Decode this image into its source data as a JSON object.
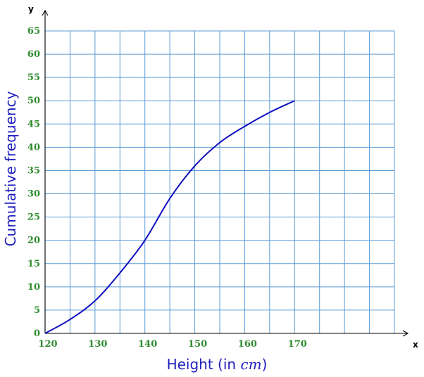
{
  "chart_data": {
    "type": "line",
    "title": "",
    "xlabel": "Height (in cm)",
    "xlabel_parts": {
      "text": "Height (in ",
      "unit": "cm",
      "close": ")"
    },
    "ylabel": "Cumulative frequency",
    "x_axis_letter": "x",
    "y_axis_letter": "y",
    "xlim": [
      120,
      190
    ],
    "ylim": [
      0,
      65
    ],
    "x_ticks": [
      120,
      130,
      140,
      150,
      160,
      170
    ],
    "y_ticks": [
      0,
      5,
      10,
      15,
      20,
      25,
      30,
      35,
      40,
      45,
      50,
      55,
      60,
      65
    ],
    "x_grid_step": 5,
    "y_grid_step": 5,
    "grid": true,
    "colors": {
      "grid": "#5b9bd5",
      "curve": "#1010c0",
      "ticks": "#2e8b2e",
      "axis_title": "#1f1fbf"
    },
    "series": [
      {
        "x": [
          120,
          125,
          130,
          135,
          140,
          145,
          150,
          155,
          160,
          165,
          170
        ],
        "y": [
          0,
          3,
          7,
          13,
          20,
          29,
          36,
          41,
          44.5,
          47.5,
          50
        ]
      }
    ]
  }
}
